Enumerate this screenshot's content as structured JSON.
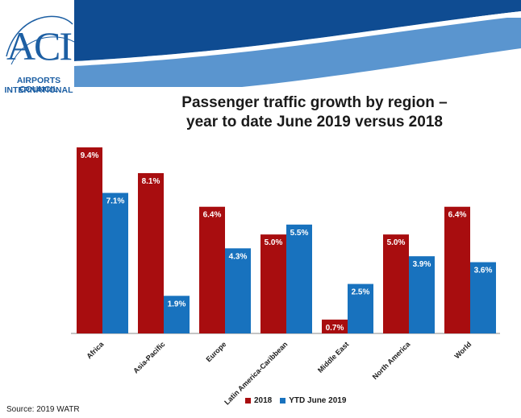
{
  "header": {
    "logo_mark": "ACI",
    "org_line1": "AIRPORTS COUNCIL",
    "org_line2": "INTERNATIONAL"
  },
  "colors": {
    "series_2018": "#a80d0f",
    "series_ytd": "#1872be",
    "banner_dark": "#0f4c92",
    "banner_light": "#5a95cf",
    "logo_blue": "#1d5fa3"
  },
  "source": "Source: 2019 WATR",
  "chart_data": {
    "type": "bar",
    "title_line1": "Passenger traffic growth by region –",
    "title_line2": "year to date June 2019 versus 2018",
    "categories": [
      "Africa",
      "Asia-Pacific",
      "Europe",
      "Latin America-Caribbean",
      "Middle East",
      "North America",
      "World"
    ],
    "series": [
      {
        "name": "2018",
        "values": [
          9.4,
          8.1,
          6.4,
          5.0,
          0.7,
          5.0,
          6.4
        ],
        "labels": [
          "9.4%",
          "8.1%",
          "6.4%",
          "5.0%",
          "0.7%",
          "5.0%",
          "6.4%"
        ]
      },
      {
        "name": "YTD June 2019",
        "values": [
          7.1,
          1.9,
          4.3,
          5.5,
          2.5,
          3.9,
          3.6
        ],
        "labels": [
          "7.1%",
          "1.9%",
          "4.3%",
          "5.5%",
          "2.5%",
          "3.9%",
          "3.6%"
        ]
      }
    ],
    "xlabel": "",
    "ylabel": "",
    "ylim": [
      0,
      9.4
    ],
    "grid": false,
    "legend": "bottom"
  }
}
